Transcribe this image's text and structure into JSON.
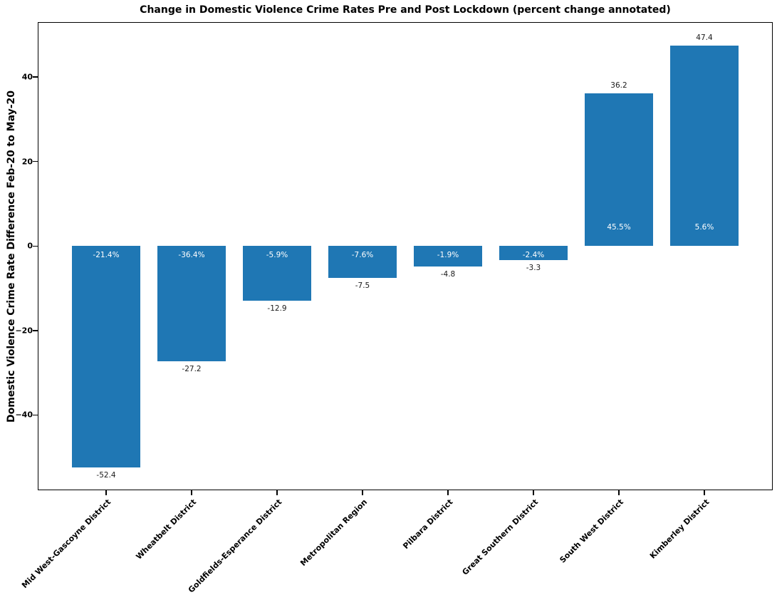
{
  "chart_data": {
    "type": "bar",
    "title": "Change in Domestic Violence Crime Rates Pre and Post Lockdown (percent change annotated)",
    "ylabel": "Domestic Violence Crime Rate Difference Feb-20 to May-20",
    "xlabel": "",
    "categories": [
      "Mid West-Gascoyne District",
      "Wheatbelt District",
      "Goldfields-Esperance District",
      "Metropolitan Region",
      "Pilbara District",
      "Great Southern District",
      "South West District",
      "Kimberley District"
    ],
    "values": [
      -52.4,
      -27.2,
      -12.9,
      -7.5,
      -4.8,
      -3.3,
      36.2,
      47.4
    ],
    "percent_annotations": [
      "-21.4%",
      "-36.4%",
      "-5.9%",
      "-7.6%",
      "-1.9%",
      "-2.4%",
      "45.5%",
      "5.6%"
    ],
    "value_annotations": [
      "-52.4",
      "-27.2",
      "-12.9",
      "-7.5",
      "-4.8",
      "-3.3",
      "36.2",
      "47.4"
    ],
    "yticks": [
      40,
      20,
      0,
      -20,
      -40
    ],
    "ylim": [
      -57.8,
      53.0
    ],
    "grid": false,
    "legend": null,
    "bar_color": "#1f77b4",
    "annotation_color_inside_bar": "#ffffff",
    "annotation_color_outside_bar": "#1a1a1a",
    "axis_color": "#000000"
  }
}
